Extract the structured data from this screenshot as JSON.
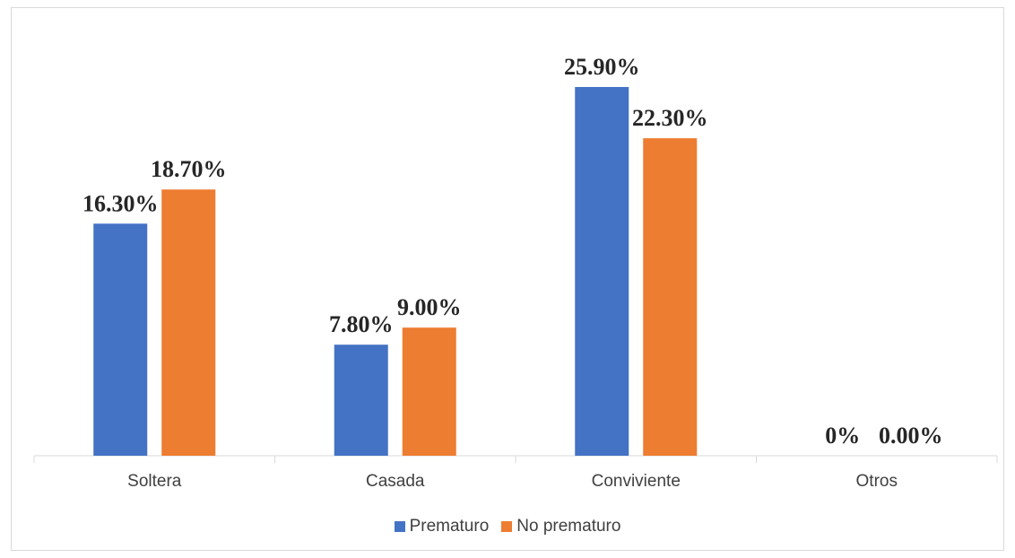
{
  "chart_data": {
    "type": "bar",
    "categories": [
      "Soltera",
      "Casada",
      "Conviviente",
      "Otros"
    ],
    "series": [
      {
        "name": "Prematuro",
        "values": [
          16.3,
          7.8,
          25.9,
          0
        ],
        "labels": [
          "16.30%",
          "7.80%",
          "25.90%",
          "0%"
        ],
        "color": "#4472C4"
      },
      {
        "name": "No prematuro",
        "values": [
          18.7,
          9.0,
          22.3,
          0
        ],
        "labels": [
          "18.70%",
          "9.00%",
          "22.30%",
          "0.00%"
        ],
        "color": "#ED7D31"
      }
    ],
    "ylim": [
      0,
      30
    ],
    "grid": false,
    "legend_position": "bottom"
  }
}
